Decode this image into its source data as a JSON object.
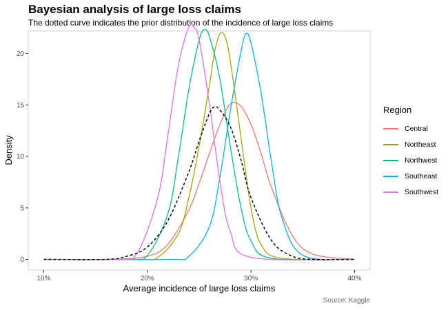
{
  "title": "Bayesian analysis of large loss claims",
  "subtitle": "The dotted curve indicates the prior distribution of the incidence of large loss claims",
  "caption": "Source: Kaggle",
  "legend_title": "Region",
  "chart_data": {
    "type": "line",
    "title": "Bayesian analysis of large loss claims",
    "subtitle": "The dotted curve indicates the prior distribution of the incidence of large loss claims",
    "xlabel": "Average incidence of large loss claims",
    "ylabel": "Density",
    "xlim": [
      0.1,
      0.4
    ],
    "ylim": [
      0,
      22.5
    ],
    "xticks": [
      0.1,
      0.2,
      0.3,
      0.4
    ],
    "xtick_labels": [
      "10%",
      "20%",
      "30%",
      "40%"
    ],
    "yticks": [
      0,
      5,
      10,
      15,
      20
    ],
    "ytick_labels": [
      "0",
      "5",
      "10",
      "15",
      "20"
    ],
    "grid": false,
    "legend_position": "right",
    "series": [
      {
        "name": "Central",
        "color": "#F8766D",
        "dash": "solid",
        "x": [
          0.1,
          0.16,
          0.2,
          0.22,
          0.24,
          0.25,
          0.26,
          0.27,
          0.28,
          0.29,
          0.3,
          0.31,
          0.32,
          0.34,
          0.36,
          0.4
        ],
        "y": [
          0.0,
          0.0,
          0.3,
          1.5,
          4.8,
          7.4,
          10.3,
          13.1,
          15.1,
          14.9,
          13.1,
          10.2,
          6.9,
          2.3,
          0.5,
          0.0
        ]
      },
      {
        "name": "Northeast",
        "color": "#A3A500",
        "dash": "solid",
        "x": [
          0.1,
          0.19,
          0.21,
          0.23,
          0.24,
          0.25,
          0.26,
          0.265,
          0.27,
          0.275,
          0.28,
          0.29,
          0.3,
          0.31,
          0.33,
          0.4
        ],
        "y": [
          0.0,
          0.0,
          0.2,
          2.5,
          6.0,
          11.0,
          17.0,
          20.2,
          21.9,
          21.6,
          19.3,
          12.1,
          5.0,
          1.4,
          0.1,
          0.0
        ]
      },
      {
        "name": "Northwest",
        "color": "#00BF7D",
        "dash": "solid",
        "x": [
          0.1,
          0.18,
          0.2,
          0.22,
          0.23,
          0.24,
          0.25,
          0.255,
          0.26,
          0.27,
          0.28,
          0.29,
          0.3,
          0.32,
          0.4
        ],
        "y": [
          0.0,
          0.0,
          0.4,
          4.5,
          10.0,
          16.5,
          21.3,
          22.3,
          21.6,
          17.5,
          11.0,
          5.2,
          1.8,
          0.1,
          0.0
        ]
      },
      {
        "name": "Southeast",
        "color": "#00B0F6",
        "dash": "solid",
        "x": [
          0.1,
          0.22,
          0.24,
          0.26,
          0.27,
          0.28,
          0.29,
          0.295,
          0.3,
          0.31,
          0.32,
          0.33,
          0.35,
          0.4
        ],
        "y": [
          0.0,
          0.0,
          0.3,
          3.2,
          8.0,
          14.4,
          20.0,
          21.9,
          21.0,
          16.0,
          9.3,
          4.0,
          0.4,
          0.0
        ]
      },
      {
        "name": "Southwest",
        "color": "#E76BF3",
        "dash": "solid",
        "x": [
          0.1,
          0.17,
          0.19,
          0.21,
          0.22,
          0.23,
          0.24,
          0.245,
          0.25,
          0.26,
          0.27,
          0.28,
          0.3,
          0.4
        ],
        "y": [
          0.0,
          0.0,
          0.6,
          6.0,
          12.2,
          18.9,
          22.6,
          22.5,
          21.3,
          15.0,
          7.6,
          2.7,
          0.2,
          0.0
        ]
      },
      {
        "name": "",
        "color": "#000000",
        "dash": "dashed",
        "x": [
          0.1,
          0.16,
          0.18,
          0.2,
          0.22,
          0.24,
          0.25,
          0.26,
          0.265,
          0.27,
          0.28,
          0.29,
          0.3,
          0.32,
          0.34,
          0.36,
          0.4
        ],
        "y": [
          0.0,
          0.0,
          0.3,
          1.2,
          3.8,
          8.5,
          11.5,
          14.2,
          14.8,
          14.5,
          12.9,
          9.8,
          6.0,
          1.8,
          0.3,
          0.0,
          0.0
        ]
      }
    ]
  }
}
